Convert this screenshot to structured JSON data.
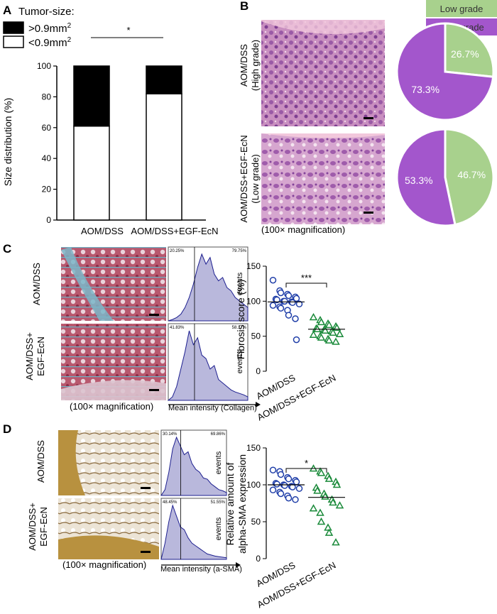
{
  "panels": {
    "a": "A",
    "b": "B",
    "c": "C",
    "d": "D"
  },
  "chart_data": [
    {
      "id": "A",
      "type": "bar",
      "stacked": true,
      "legend_title": "Tumor-size:",
      "legend": [
        {
          "name": ">0.9mm",
          "sup": "2",
          "color": "#000000"
        },
        {
          "name": "<0.9mm",
          "sup": "2",
          "color": "#ffffff"
        }
      ],
      "categories": [
        "AOM/DSS",
        "AOM/DSS+EGF-EcN"
      ],
      "series": [
        {
          "name": "<0.9mm2",
          "values": [
            61,
            82
          ]
        },
        {
          "name": ">0.9mm2",
          "values": [
            39,
            18
          ]
        }
      ],
      "ylabel": "Size distribution (%)",
      "ylim": [
        0,
        100
      ],
      "yticks": [
        "0",
        "20",
        "40",
        "60",
        "80",
        "100"
      ],
      "significance": "*"
    },
    {
      "id": "B",
      "type": "pie",
      "legend": [
        {
          "name": "Low grade",
          "color": "#a8d18d"
        },
        {
          "name": "High grade",
          "color": "#a356cc"
        }
      ],
      "rows": [
        {
          "group_line1": "AOM/DSS",
          "group_line2": "(High grade)",
          "slices": [
            {
              "label": "26.7%",
              "value": 26.7,
              "color": "#a8d18d"
            },
            {
              "label": "73.3%",
              "value": 73.3,
              "color": "#a356cc"
            }
          ]
        },
        {
          "group_line1": "AOM/DSS+EGF-EcN",
          "group_line2": "(Low grade)",
          "slices": [
            {
              "label": "46.7%",
              "value": 46.7,
              "color": "#a8d18d"
            },
            {
              "label": "53.3%",
              "value": 53.3,
              "color": "#a356cc"
            }
          ]
        }
      ],
      "caption": "(100× magnification)"
    },
    {
      "id": "C",
      "type": "scatter",
      "row_labels": [
        [
          "AOM/DSS"
        ],
        [
          "AOM/DSS+",
          "EGF-EcN"
        ]
      ],
      "caption": "(100× magnification)",
      "histograms": [
        {
          "left_pct": "20.25%",
          "right_pct": "79.75%",
          "y_label": "events"
        },
        {
          "left_pct": "41.83%",
          "right_pct": "58.17%",
          "y_label": "events"
        }
      ],
      "hist_xlabel": "Mean intensity (Collagen)",
      "ylabel": "Fibrosis score (%)",
      "ylim": [
        0,
        150
      ],
      "yticks": [
        "0",
        "50",
        "100",
        "150"
      ],
      "categories": [
        "AOM/DSS",
        "AOM/DSS+EGF-EcN"
      ],
      "series": [
        {
          "marker": "circle",
          "color": "#1f3ea8",
          "mean": 99,
          "values": [
            130,
            115,
            112,
            110,
            108,
            106,
            104,
            103,
            102,
            100,
            100,
            99,
            98,
            96,
            94,
            92,
            90,
            87,
            80,
            75,
            45
          ]
        },
        {
          "marker": "triangle",
          "color": "#1a8a3a",
          "mean": 60,
          "values": [
            77,
            73,
            70,
            68,
            66,
            64,
            62,
            61,
            60,
            59,
            58,
            57,
            55,
            53,
            52,
            50,
            48,
            46,
            44,
            42
          ]
        }
      ],
      "significance": "***"
    },
    {
      "id": "D",
      "type": "scatter",
      "row_labels": [
        [
          "AOM/DSS"
        ],
        [
          "AOM/DSS+",
          "EGF-EcN"
        ]
      ],
      "caption": "(100× magnification)",
      "histograms": [
        {
          "left_pct": "30.14%",
          "right_pct": "69.86%",
          "y_label": "events"
        },
        {
          "left_pct": "48.45%",
          "right_pct": "51.55%",
          "y_label": "events"
        }
      ],
      "hist_xlabel": "Mean intensity (a-SMA)",
      "ylabel_line1": "Relative amount of",
      "ylabel_line2": "alpha-SMA expression",
      "ylim": [
        0,
        150
      ],
      "yticks": [
        "0",
        "50",
        "100",
        "150"
      ],
      "categories": [
        "AOM/DSS",
        "AOM/DSS+EGF-EcN"
      ],
      "series": [
        {
          "marker": "circle",
          "color": "#1f3ea8",
          "mean": 100,
          "values": [
            120,
            118,
            114,
            110,
            108,
            106,
            104,
            102,
            101,
            100,
            99,
            98,
            97,
            95,
            93,
            90,
            88,
            85,
            82,
            80
          ]
        },
        {
          "marker": "triangle",
          "color": "#1a8a3a",
          "mean": 83,
          "values": [
            122,
            118,
            116,
            112,
            108,
            104,
            100,
            96,
            92,
            88,
            84,
            80,
            76,
            72,
            68,
            62,
            50,
            42,
            35,
            22
          ]
        }
      ],
      "significance": "*"
    }
  ]
}
